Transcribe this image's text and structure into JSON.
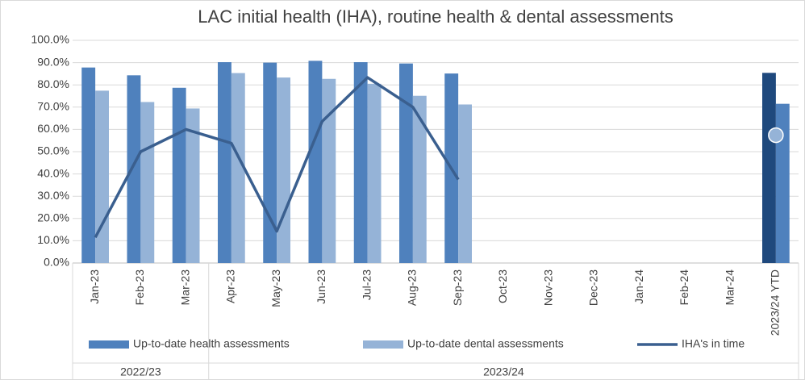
{
  "chart_data": {
    "type": "bar_line",
    "title": "LAC initial health (IHA), routine health & dental assessments",
    "categories": [
      "Jan-23",
      "Feb-23",
      "Mar-23",
      "Apr-23",
      "May-23",
      "Jun-23",
      "Jul-23",
      "Aug-23",
      "Sep-23",
      "Oct-23",
      "Nov-23",
      "Dec-23",
      "Jan-24",
      "Feb-24",
      "Mar-24",
      "2023/24 YTD"
    ],
    "groups": [
      {
        "label": "2022/23",
        "span": 3
      },
      {
        "label": "2023/24",
        "span": 13
      }
    ],
    "series": [
      {
        "name": "Up-to-date health assessments",
        "kind": "bar",
        "color": "#4f81bd",
        "last_color": "#1f497d",
        "values": [
          87.8,
          84.3,
          78.7,
          90.2,
          90.0,
          90.8,
          90.2,
          89.6,
          85.1,
          null,
          null,
          null,
          null,
          null,
          null,
          85.4
        ]
      },
      {
        "name": "Up-to-date dental assessments",
        "kind": "bar",
        "color": "#95b3d7",
        "last_color": "#4f81bd",
        "values": [
          77.4,
          72.3,
          69.4,
          85.3,
          83.3,
          82.7,
          80.5,
          75.1,
          71.2,
          null,
          null,
          null,
          null,
          null,
          null,
          71.5
        ]
      },
      {
        "name": "IHA's in time",
        "kind": "line",
        "color": "#3a5f8f",
        "values": [
          11.5,
          50.0,
          60.0,
          53.8,
          14.3,
          63.6,
          83.3,
          70.0,
          37.5,
          null,
          null,
          null,
          null,
          null,
          null,
          57.4
        ]
      }
    ],
    "ylim": [
      0,
      100
    ],
    "yticks": [
      {
        "value": 0,
        "label": "0.0%"
      },
      {
        "value": 10,
        "label": "10.0%"
      },
      {
        "value": 20,
        "label": "20.0%"
      },
      {
        "value": 30,
        "label": "30.0%"
      },
      {
        "value": 40,
        "label": "40.0%"
      },
      {
        "value": 50,
        "label": "50.0%"
      },
      {
        "value": 60,
        "label": "60.0%"
      },
      {
        "value": 70,
        "label": "70.0%"
      },
      {
        "value": 80,
        "label": "80.0%"
      },
      {
        "value": 90,
        "label": "90.0%"
      },
      {
        "value": 100,
        "label": "100.0%"
      }
    ],
    "grid": true,
    "legend": "bottom"
  }
}
